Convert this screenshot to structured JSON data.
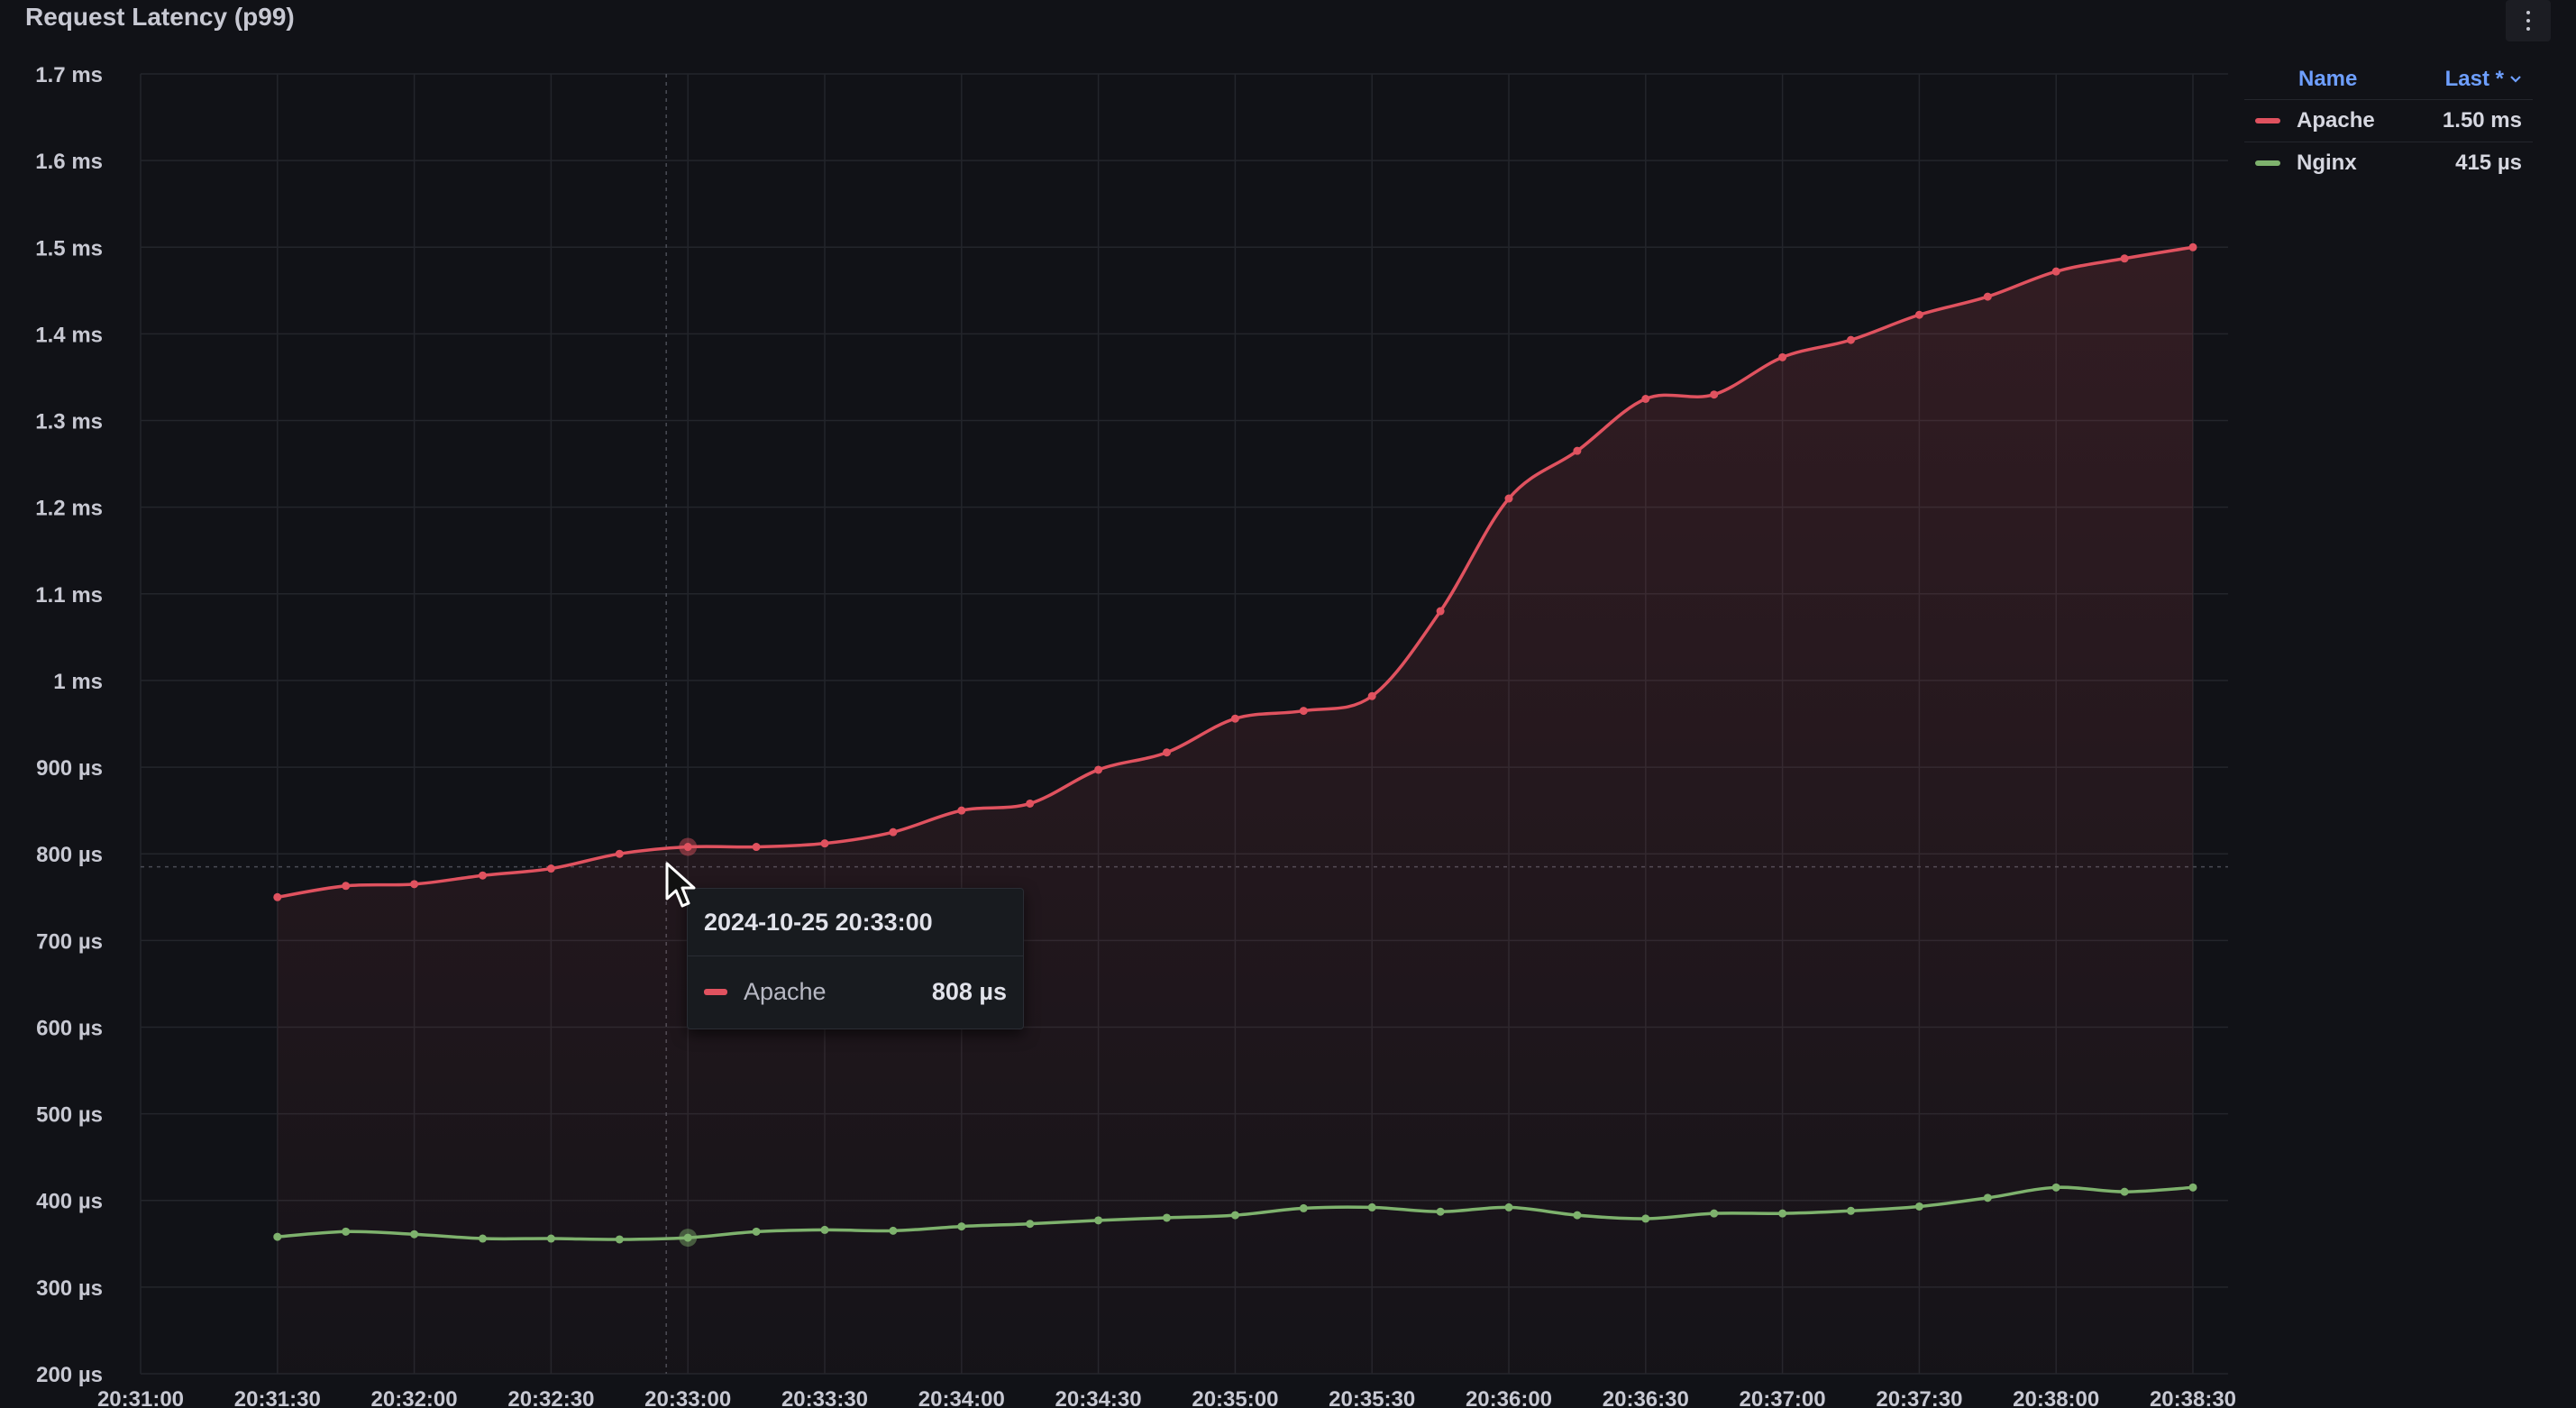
{
  "panel": {
    "title": "Request Latency (p99)",
    "menu_icon": "kebab-menu-icon"
  },
  "legend": {
    "header_name": "Name",
    "header_last": "Last *",
    "sort_icon": "chevron-down-icon",
    "items": [
      {
        "name": "Apache",
        "last": "1.50 ms",
        "color": "#e0525f"
      },
      {
        "name": "Nginx",
        "last": "415 µs",
        "color": "#7eb26d"
      }
    ]
  },
  "tooltip": {
    "time": "2024-10-25 20:33:00",
    "series": "Apache",
    "value": "808 µs",
    "color": "#e0525f"
  },
  "chart_data": {
    "type": "line",
    "title": "Request Latency (p99)",
    "y_unit": "µs",
    "ylim": [
      200,
      1700
    ],
    "y_ticks": [
      200,
      300,
      400,
      500,
      600,
      700,
      800,
      900,
      1000,
      1100,
      1200,
      1300,
      1400,
      1500,
      1600,
      1700
    ],
    "y_tick_labels": [
      "200 µs",
      "300 µs",
      "400 µs",
      "500 µs",
      "600 µs",
      "700 µs",
      "800 µs",
      "900 µs",
      "1 ms",
      "1.1 ms",
      "1.2 ms",
      "1.3 ms",
      "1.4 ms",
      "1.5 ms",
      "1.6 ms",
      "1.7 ms"
    ],
    "x_tick_labels": [
      "20:31:00",
      "20:31:30",
      "20:32:00",
      "20:32:30",
      "20:33:00",
      "20:33:30",
      "20:34:00",
      "20:34:30",
      "20:35:00",
      "20:35:30",
      "20:36:00",
      "20:36:30",
      "20:37:00",
      "20:37:30",
      "20:38:00",
      "20:38:30"
    ],
    "x": [
      "20:31:30",
      "20:31:45",
      "20:32:00",
      "20:32:15",
      "20:32:30",
      "20:32:45",
      "20:33:00",
      "20:33:15",
      "20:33:30",
      "20:33:45",
      "20:34:00",
      "20:34:15",
      "20:34:30",
      "20:34:45",
      "20:35:00",
      "20:35:15",
      "20:35:30",
      "20:35:45",
      "20:36:00",
      "20:36:15",
      "20:36:30",
      "20:36:45",
      "20:37:00",
      "20:37:15",
      "20:37:30",
      "20:37:45",
      "20:38:00",
      "20:38:15",
      "20:38:30"
    ],
    "series": [
      {
        "name": "Apache",
        "color": "#e0525f",
        "fill": true,
        "values": [
          750,
          763,
          765,
          775,
          783,
          800,
          808,
          808,
          812,
          825,
          850,
          858,
          897,
          917,
          956,
          965,
          982,
          1080,
          1210,
          1265,
          1325,
          1330,
          1373,
          1393,
          1422,
          1443,
          1472,
          1487,
          1500
        ]
      },
      {
        "name": "Nginx",
        "color": "#7eb26d",
        "fill": false,
        "values": [
          358,
          364,
          361,
          356,
          356,
          355,
          357,
          364,
          366,
          365,
          370,
          373,
          377,
          380,
          383,
          391,
          392,
          387,
          392,
          383,
          379,
          385,
          385,
          388,
          393,
          403,
          415,
          410,
          415
        ]
      }
    ],
    "highlight_x": "20:33:00",
    "threshold_line_value": 785,
    "grid": true,
    "legend_position": "right"
  }
}
